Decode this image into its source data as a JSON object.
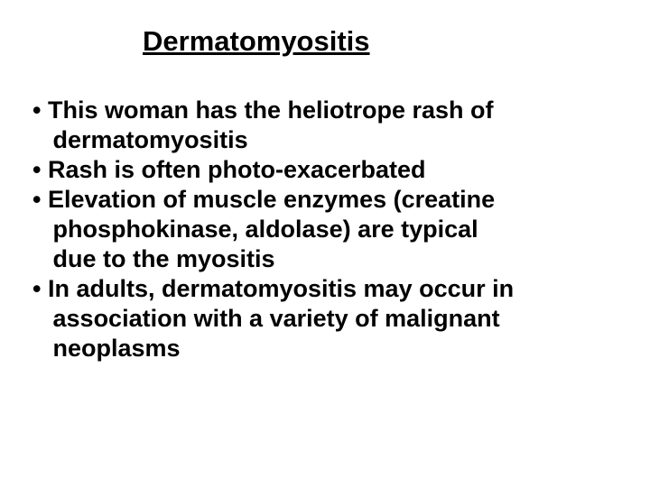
{
  "slide": {
    "title": "Dermatomyositis",
    "title_fontsize": 31,
    "title_underline": true,
    "body_fontsize": 27,
    "body_fontweight": "bold",
    "background_color": "#ffffff",
    "text_color": "#000000",
    "font_family": "Arial",
    "bullets": [
      {
        "marker": "•",
        "lines": [
          "This woman has the heliotrope rash of",
          "dermatomyositis"
        ]
      },
      {
        "marker": "•",
        "lines": [
          "Rash is often photo-exacerbated"
        ]
      },
      {
        "marker": "•",
        "lines": [
          "Elevation of muscle enzymes (creatine",
          "phosphokinase, aldolase) are typical",
          "due to the myositis"
        ]
      },
      {
        "marker": "•",
        "lines": [
          "In adults, dermatomyositis may occur in",
          "association with a variety of malignant",
          "neoplasms"
        ]
      }
    ]
  }
}
